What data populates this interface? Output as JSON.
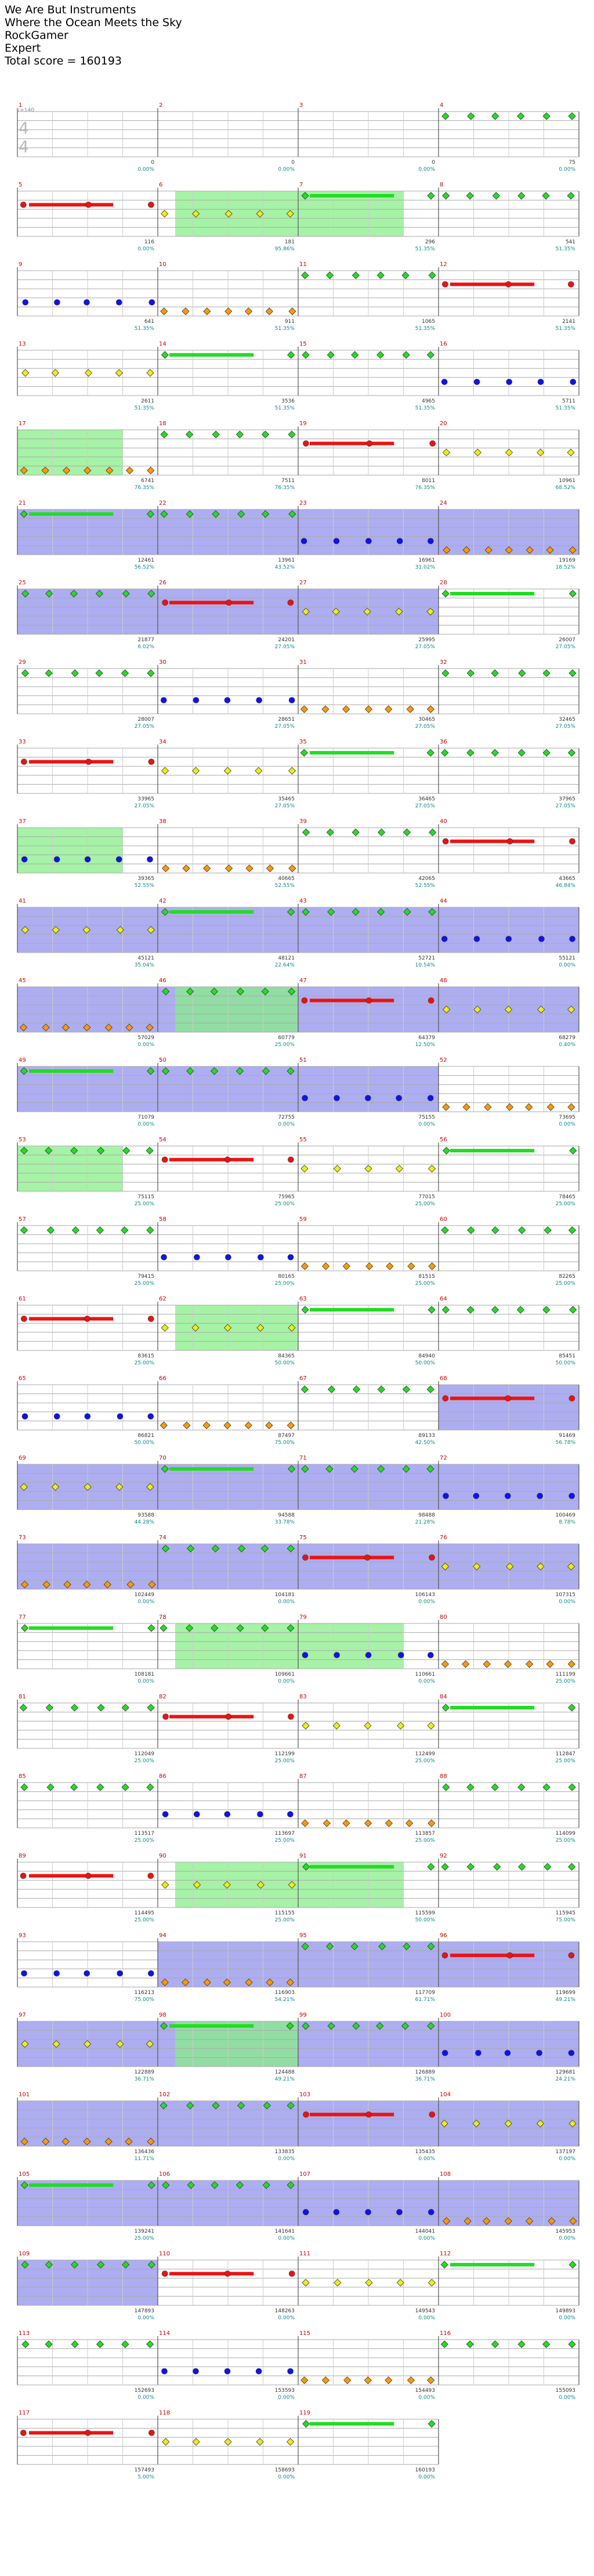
{
  "header": {
    "title": "We Are But Instruments",
    "subtitle": "Where the Ocean Meets the Sky",
    "player": "RockGamer",
    "difficulty": "Expert",
    "total_score": "Total score = 160193"
  },
  "tempo_marker": "♩=140",
  "time_signature": {
    "top": "4",
    "bottom": "4"
  },
  "colors": {
    "green": "#22dd22",
    "red": "#ee1111",
    "yellow": "#eeee11",
    "blue": "#1111ee",
    "orange": "#ff9900",
    "purple": "#880088",
    "star_green": "#11bb11"
  },
  "measures": [
    {
      "n": "1",
      "score": "0",
      "pct": "0.00%"
    },
    {
      "n": "2",
      "score": "0",
      "pct": "0.00%"
    },
    {
      "n": "3",
      "score": "0",
      "pct": "0.00%"
    },
    {
      "n": "4",
      "score": "75",
      "pct": "0.00%"
    },
    {
      "n": "5",
      "score": "116",
      "pct": "0.00%"
    },
    {
      "n": "6",
      "score": "181",
      "pct": "95.86%"
    },
    {
      "n": "7",
      "score": "296",
      "pct": "51.35%"
    },
    {
      "n": "8",
      "score": "541",
      "pct": "51.35%"
    },
    {
      "n": "9",
      "score": "641",
      "pct": "51.35%"
    },
    {
      "n": "10",
      "score": "911",
      "pct": "51.35%"
    },
    {
      "n": "11",
      "score": "1065",
      "pct": "51.35%"
    },
    {
      "n": "12",
      "score": "2141",
      "pct": "51.35%"
    },
    {
      "n": "13",
      "score": "2611",
      "pct": "51.35%"
    },
    {
      "n": "14",
      "score": "3536",
      "pct": "51.35%"
    },
    {
      "n": "15",
      "score": "4965",
      "pct": "51.35%"
    },
    {
      "n": "16",
      "score": "5711",
      "pct": "51.35%"
    },
    {
      "n": "17",
      "score": "6741",
      "pct": "76.35%"
    },
    {
      "n": "18",
      "score": "7511",
      "pct": "76.35%"
    },
    {
      "n": "19",
      "score": "8011",
      "pct": "76.35%"
    },
    {
      "n": "20",
      "score": "10961",
      "pct": "68.52%"
    },
    {
      "n": "21",
      "score": "12461",
      "pct": "56.52%"
    },
    {
      "n": "22",
      "score": "13961",
      "pct": "43.52%"
    },
    {
      "n": "23",
      "score": "16961",
      "pct": "31.02%"
    },
    {
      "n": "24",
      "score": "19169",
      "pct": "18.52%"
    },
    {
      "n": "25",
      "score": "21877",
      "pct": "6.02%"
    },
    {
      "n": "26",
      "score": "24201",
      "pct": "27.05%"
    },
    {
      "n": "27",
      "score": "25995",
      "pct": "27.05%"
    },
    {
      "n": "28",
      "score": "26007",
      "pct": "27.05%"
    },
    {
      "n": "29",
      "score": "28007",
      "pct": "27.05%"
    },
    {
      "n": "30",
      "score": "28651",
      "pct": "27.05%"
    },
    {
      "n": "31",
      "score": "30465",
      "pct": "27.05%"
    },
    {
      "n": "32",
      "score": "32465",
      "pct": "27.05%"
    },
    {
      "n": "33",
      "score": "33965",
      "pct": "27.05%"
    },
    {
      "n": "34",
      "score": "35465",
      "pct": "27.05%"
    },
    {
      "n": "35",
      "score": "36465",
      "pct": "27.05%"
    },
    {
      "n": "36",
      "score": "37965",
      "pct": "27.05%"
    },
    {
      "n": "37",
      "score": "39365",
      "pct": "52.55%"
    },
    {
      "n": "38",
      "score": "40665",
      "pct": "52.55%"
    },
    {
      "n": "39",
      "score": "42065",
      "pct": "52.55%"
    },
    {
      "n": "40",
      "score": "43665",
      "pct": "46.84%"
    },
    {
      "n": "41",
      "score": "45121",
      "pct": "35.04%"
    },
    {
      "n": "42",
      "score": "48121",
      "pct": "22.64%"
    },
    {
      "n": "43",
      "score": "52721",
      "pct": "10.54%"
    },
    {
      "n": "44",
      "score": "55121",
      "pct": "0.00%"
    },
    {
      "n": "45",
      "score": "57029",
      "pct": "0.00%"
    },
    {
      "n": "46",
      "score": "60779",
      "pct": "25.00%"
    },
    {
      "n": "47",
      "score": "64379",
      "pct": "12.50%"
    },
    {
      "n": "48",
      "score": "68279",
      "pct": "0.40%"
    },
    {
      "n": "49",
      "score": "71079",
      "pct": "0.00%"
    },
    {
      "n": "50",
      "score": "72755",
      "pct": "0.00%"
    },
    {
      "n": "51",
      "score": "75155",
      "pct": "0.00%"
    },
    {
      "n": "52",
      "score": "73695",
      "pct": "0.00%"
    },
    {
      "n": "53",
      "score": "75115",
      "pct": "25.00%"
    },
    {
      "n": "54",
      "score": "75965",
      "pct": "25.00%"
    },
    {
      "n": "55",
      "score": "77015",
      "pct": "25.00%"
    },
    {
      "n": "56",
      "score": "78465",
      "pct": "25.00%"
    },
    {
      "n": "57",
      "score": "79415",
      "pct": "25.00%"
    },
    {
      "n": "58",
      "score": "80165",
      "pct": "25.00%"
    },
    {
      "n": "59",
      "score": "81515",
      "pct": "25.00%"
    },
    {
      "n": "60",
      "score": "82265",
      "pct": "25.00%"
    },
    {
      "n": "61",
      "score": "83615",
      "pct": "25.00%"
    },
    {
      "n": "62",
      "score": "84365",
      "pct": "50.00%"
    },
    {
      "n": "63",
      "score": "84940",
      "pct": "50.00%"
    },
    {
      "n": "64",
      "score": "85451",
      "pct": "50.00%"
    },
    {
      "n": "65",
      "score": "86821",
      "pct": "50.00%"
    },
    {
      "n": "66",
      "score": "87497",
      "pct": "75.00%"
    },
    {
      "n": "67",
      "score": "89133",
      "pct": "42.50%"
    },
    {
      "n": "68",
      "score": "91469",
      "pct": "56.78%"
    },
    {
      "n": "69",
      "score": "93588",
      "pct": "44.28%"
    },
    {
      "n": "70",
      "score": "94588",
      "pct": "33.78%"
    },
    {
      "n": "71",
      "score": "98488",
      "pct": "21.28%"
    },
    {
      "n": "72",
      "score": "100469",
      "pct": "8.78%"
    },
    {
      "n": "73",
      "score": "102449",
      "pct": "0.00%"
    },
    {
      "n": "74",
      "score": "104181",
      "pct": "0.00%"
    },
    {
      "n": "75",
      "score": "106143",
      "pct": "0.00%"
    },
    {
      "n": "76",
      "score": "107315",
      "pct": "0.00%"
    },
    {
      "n": "77",
      "score": "108181",
      "pct": "0.00%"
    },
    {
      "n": "78",
      "score": "109661",
      "pct": "0.00%"
    },
    {
      "n": "79",
      "score": "110661",
      "pct": "0.00%"
    },
    {
      "n": "80",
      "score": "111199",
      "pct": "25.00%"
    },
    {
      "n": "81",
      "score": "112049",
      "pct": "25.00%"
    },
    {
      "n": "82",
      "score": "112199",
      "pct": "25.00%"
    },
    {
      "n": "83",
      "score": "112499",
      "pct": "25.00%"
    },
    {
      "n": "84",
      "score": "112847",
      "pct": "25.00%"
    },
    {
      "n": "85",
      "score": "113517",
      "pct": "25.00%"
    },
    {
      "n": "86",
      "score": "113697",
      "pct": "25.00%"
    },
    {
      "n": "87",
      "score": "113857",
      "pct": "25.00%"
    },
    {
      "n": "88",
      "score": "114099",
      "pct": "25.00%"
    },
    {
      "n": "89",
      "score": "114495",
      "pct": "25.00%"
    },
    {
      "n": "90",
      "score": "115155",
      "pct": "25.00%"
    },
    {
      "n": "91",
      "score": "115599",
      "pct": "50.00%"
    },
    {
      "n": "92",
      "score": "115945",
      "pct": "75.00%"
    },
    {
      "n": "93",
      "score": "116213",
      "pct": "75.00%"
    },
    {
      "n": "94",
      "score": "116903",
      "pct": "54.21%"
    },
    {
      "n": "95",
      "score": "117709",
      "pct": "61.71%"
    },
    {
      "n": "96",
      "score": "119699",
      "pct": "49.21%"
    },
    {
      "n": "97",
      "score": "122889",
      "pct": "36.71%"
    },
    {
      "n": "98",
      "score": "124488",
      "pct": "49.21%"
    },
    {
      "n": "99",
      "score": "126889",
      "pct": "36.71%"
    },
    {
      "n": "100",
      "score": "129681",
      "pct": "24.21%"
    },
    {
      "n": "101",
      "score": "136436",
      "pct": "11.71%"
    },
    {
      "n": "102",
      "score": "133835",
      "pct": "0.00%"
    },
    {
      "n": "103",
      "score": "135435",
      "pct": "0.00%"
    },
    {
      "n": "104",
      "score": "137197",
      "pct": "0.00%"
    },
    {
      "n": "105",
      "score": "139241",
      "pct": "25.00%"
    },
    {
      "n": "106",
      "score": "141641",
      "pct": "0.00%"
    },
    {
      "n": "107",
      "score": "144041",
      "pct": "0.00%"
    },
    {
      "n": "108",
      "score": "145953",
      "pct": "0.00%"
    },
    {
      "n": "109",
      "score": "147893",
      "pct": "0.00%"
    },
    {
      "n": "110",
      "score": "148263",
      "pct": "0.00%"
    },
    {
      "n": "111",
      "score": "149543",
      "pct": "0.00%"
    },
    {
      "n": "112",
      "score": "149893",
      "pct": "0.00%"
    },
    {
      "n": "113",
      "score": "152693",
      "pct": "0.00%"
    },
    {
      "n": "114",
      "score": "153593",
      "pct": "0.00%"
    },
    {
      "n": "115",
      "score": "154493",
      "pct": "0.00%"
    },
    {
      "n": "116",
      "score": "155093",
      "pct": "0.00%"
    },
    {
      "n": "117",
      "score": "157493",
      "pct": "5.00%"
    },
    {
      "n": "118",
      "score": "158693",
      "pct": "0.00%"
    },
    {
      "n": "119",
      "score": "160193",
      "pct": "0.00%"
    }
  ]
}
